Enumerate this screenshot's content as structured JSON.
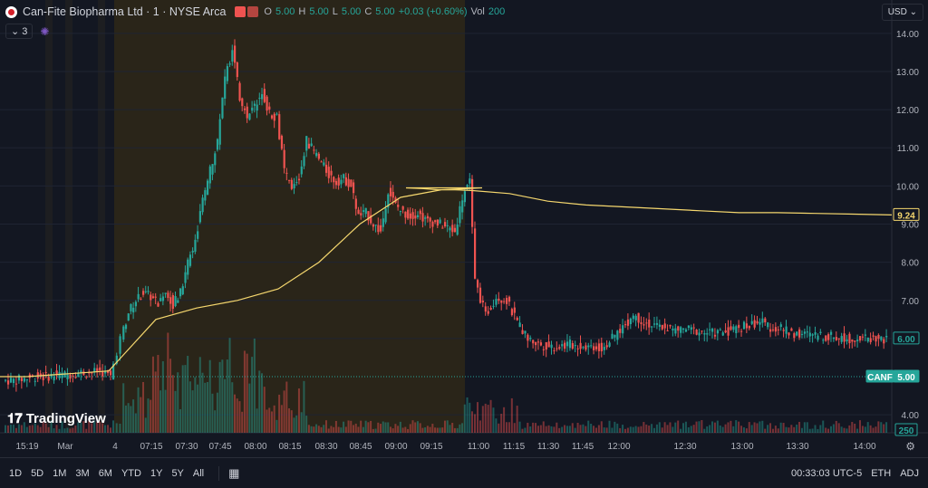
{
  "header": {
    "symbol_title": "Can-Fite Biopharma Ltd · 1 · NYSE Arca",
    "ohlc": {
      "o_label": "O",
      "o_value": "5.00",
      "h_label": "H",
      "h_value": "5.00",
      "l_label": "L",
      "l_value": "5.00",
      "c_label": "C",
      "c_value": "5.00",
      "change": "+0.03 (+0.60%)",
      "vol_label": "Vol",
      "vol_value": "200"
    }
  },
  "collapse": {
    "count": "3"
  },
  "currency": "USD",
  "watermark": "TradingView",
  "ranges": [
    "1D",
    "5D",
    "1M",
    "3M",
    "6M",
    "YTD",
    "1Y",
    "5Y",
    "All"
  ],
  "status": {
    "time": "00:33:03 UTC-5",
    "exchange": "ETH",
    "adj": "ADJ"
  },
  "colors": {
    "up": "#26a69a",
    "down": "#ef5350",
    "vwap": "#f5d76e",
    "premarket_bg": "#2a2519",
    "bg": "#131722",
    "text": "#b2b5be"
  },
  "chart_data": {
    "type": "candlestick",
    "y_ticks": [
      "14.00",
      "13.00",
      "12.00",
      "11.00",
      "10.00",
      "9.00",
      "8.00",
      "7.00",
      "6.00",
      "4.00"
    ],
    "x_ticks": [
      "15:19",
      "Mar",
      "4",
      "07:15",
      "07:30",
      "07:45",
      "08:00",
      "08:15",
      "08:30",
      "08:45",
      "09:00",
      "09:15",
      "11:00",
      "11:15",
      "11:30",
      "11:45",
      "12:00",
      "12:30",
      "13:00",
      "13:30",
      "14:00"
    ],
    "ylim": [
      3.6,
      14.4
    ],
    "price_path": [
      4.9,
      4.9,
      4.95,
      5.0,
      5.0,
      5.05,
      5.05,
      5.1,
      5.1,
      5.15,
      5.0,
      6.0,
      6.7,
      7.0,
      7.2,
      7.1,
      6.9,
      7.3,
      6.9,
      7.2,
      8.0,
      8.6,
      9.6,
      10.4,
      11.2,
      12.8,
      13.6,
      12.3,
      11.8,
      12.1,
      12.5,
      11.9,
      11.8,
      10.4,
      9.9,
      10.2,
      11.2,
      10.9,
      10.6,
      10.3,
      10.1,
      10.2,
      10.0,
      9.2,
      9.3,
      9.0,
      8.8,
      9.9,
      9.5,
      9.3,
      9.2,
      9.3,
      9.1,
      9.05,
      9.0,
      8.9,
      8.8,
      9.7,
      10.2,
      7.5,
      6.6,
      7.1,
      7.0,
      6.4,
      6.0,
      5.85,
      5.8,
      5.8,
      5.85,
      5.8,
      5.8,
      5.75,
      6.0,
      6.3,
      6.6,
      6.45,
      6.3,
      6.3,
      6.2,
      6.25,
      6.2,
      6.15,
      6.15,
      6.2,
      6.3,
      6.35,
      6.45,
      6.3,
      6.25,
      6.15,
      6.1,
      6.1,
      6.05,
      6.05,
      6.0,
      6.0,
      6.0,
      6.0,
      5.95
    ],
    "vwap_path": [
      5.0,
      5.0,
      5.05,
      5.1,
      5.15,
      6.5,
      6.8,
      7.0,
      7.3,
      8.0,
      9.0,
      9.7,
      9.9,
      9.95,
      9.95,
      9.93,
      9.9,
      9.9,
      9.88,
      9.8,
      9.6,
      9.5,
      9.45,
      9.4,
      9.35,
      9.3,
      9.3,
      9.28,
      9.26,
      9.24
    ],
    "last_price_label": "9.24",
    "current_price_label": "6.00",
    "symbol_tag": "CANF",
    "symbol_price": "5.00",
    "volume_label": "250",
    "reference_level": 5.0
  }
}
